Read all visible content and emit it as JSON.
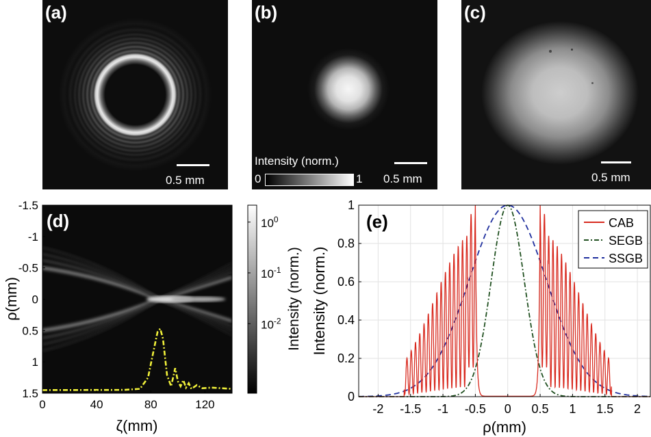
{
  "panels": {
    "a": {
      "label": "(a)",
      "scalebar": "0.5 mm"
    },
    "b": {
      "label": "(b)",
      "scalebar": "0.5 mm",
      "colorbar_title": "Intensity (norm.)",
      "colorbar_min": "0",
      "colorbar_max": "1"
    },
    "c": {
      "label": "(c)",
      "scalebar": "0.5 mm"
    },
    "d": {
      "label": "(d)"
    },
    "e": {
      "label": "(e)"
    }
  },
  "chart_data": [
    {
      "type": "heatmap",
      "panel": "d",
      "xlabel": "ζ(mm)",
      "ylabel": "ρ(mm)",
      "xlim": [
        0,
        140
      ],
      "ylim": [
        1.5,
        -1.5
      ],
      "x_ticks": [
        "0",
        "40",
        "80",
        "120"
      ],
      "y_ticks": [
        "-1.5",
        "-1",
        "-0.5",
        "0",
        "0.5",
        "1",
        "1.5"
      ],
      "colorbar": {
        "label": "Intensity (norm.)",
        "scale": "log",
        "ticks": [
          "10^0",
          "10^-1",
          "10^-2"
        ],
        "tick_base": "10",
        "tick_exponents": [
          "0",
          "-1",
          "-2"
        ]
      },
      "overlay_line_color": "#f2f23a",
      "overlay_profile": {
        "zeta": [
          0,
          60,
          72,
          78,
          82,
          85,
          87,
          89,
          92,
          95,
          98,
          100,
          102,
          104,
          106,
          108,
          110,
          114,
          118,
          125,
          140
        ],
        "level": [
          0.0,
          0.003,
          0.02,
          0.2,
          0.62,
          0.93,
          0.98,
          0.82,
          0.24,
          0.06,
          0.35,
          0.14,
          0.06,
          0.16,
          0.04,
          0.11,
          0.02,
          0.08,
          0.03,
          0.04,
          0.02
        ]
      }
    },
    {
      "type": "line",
      "panel": "e",
      "xlabel": "ρ(mm)",
      "ylabel": "Intensity (norm.)",
      "xlim": [
        -2.3,
        2.2
      ],
      "ylim": [
        0,
        1
      ],
      "x_ticks": [
        "-2",
        "-1.5",
        "-1",
        "-0.5",
        "0",
        "0.5",
        "1",
        "1.5",
        "2"
      ],
      "y_ticks": [
        "0",
        "0.2",
        "0.4",
        "0.6",
        "0.8",
        "1"
      ],
      "grid": true,
      "legend_position": "top-right",
      "series": [
        {
          "name": "CAB",
          "color": "#d8291e",
          "style": "solid",
          "peak_rho": 0.5,
          "envelope_width": 0.62,
          "ring_period": 0.066,
          "cutoff": 1.6
        },
        {
          "name": "SEGB",
          "color": "#1f4f1f",
          "style": "dash-dot",
          "sigma": 0.255
        },
        {
          "name": "SSGB",
          "color": "#1f2f9e",
          "style": "dashed",
          "sigma": 0.6
        }
      ]
    }
  ]
}
